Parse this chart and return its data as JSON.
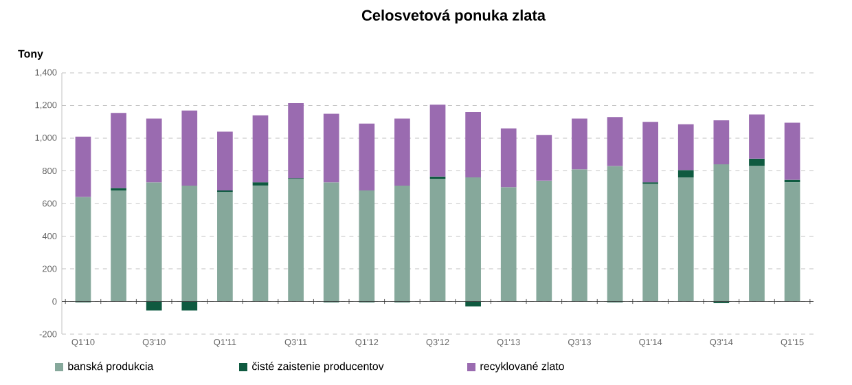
{
  "chart_data": {
    "type": "bar",
    "stacked": true,
    "title": "Celosvetová ponuka zlata",
    "ylabel": "Tony",
    "categories": [
      "Q1'10",
      null,
      "Q3'10",
      null,
      "Q1'11",
      null,
      "Q3'11",
      null,
      "Q1'12",
      null,
      "Q3'12",
      null,
      "Q1'13",
      null,
      "Q3'13",
      null,
      "Q1'14",
      null,
      "Q3'14",
      null,
      "Q1'15"
    ],
    "series": [
      {
        "name": "banská produkcia",
        "color": "#86a89b",
        "values": [
          640,
          680,
          730,
          710,
          670,
          710,
          750,
          730,
          680,
          710,
          750,
          760,
          700,
          740,
          810,
          830,
          720,
          760,
          840,
          830,
          730
        ]
      },
      {
        "name": "čisté zaistenie producentov",
        "color": "#0f5a40",
        "values": [
          -5,
          15,
          -55,
          -55,
          10,
          20,
          5,
          -5,
          -5,
          -5,
          15,
          -30,
          0,
          0,
          0,
          -5,
          10,
          45,
          -10,
          45,
          15
        ]
      },
      {
        "name": "recyklované zlato",
        "color": "#9a6bb0",
        "values": [
          370,
          460,
          390,
          460,
          360,
          410,
          460,
          420,
          410,
          410,
          440,
          400,
          360,
          280,
          310,
          300,
          370,
          280,
          270,
          270,
          350
        ]
      }
    ],
    "ylim": [
      -200,
      1400
    ],
    "yticks": [
      {
        "value": -200,
        "label": "-200"
      },
      0,
      200,
      400,
      600,
      800,
      {
        "value": 1000,
        "label": "1,000"
      },
      {
        "value": 1200,
        "label": "1,200"
      },
      {
        "value": 1400,
        "label": "1,400"
      }
    ],
    "grid": "y",
    "legend": "bottom left"
  }
}
